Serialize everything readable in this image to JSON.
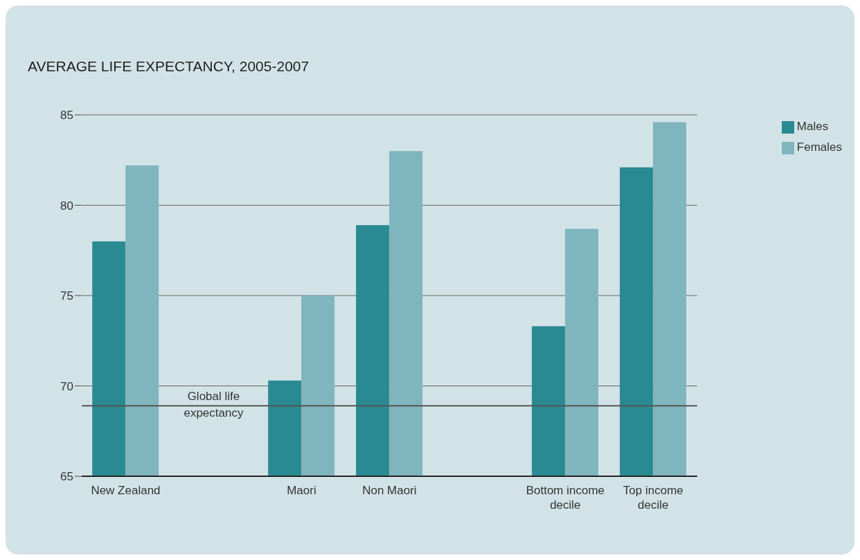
{
  "chart_data": {
    "type": "bar",
    "title": "AVERAGE LIFE EXPECTANCY, 2005-2007",
    "categories": [
      "New Zealand",
      null,
      "Maori",
      "Non Maori",
      null,
      "Bottom income decile",
      "Top income decile"
    ],
    "series": [
      {
        "name": "Males",
        "color": "#2a8a92",
        "values": [
          78.0,
          null,
          70.3,
          78.9,
          null,
          73.3,
          82.1
        ]
      },
      {
        "name": "Females",
        "color": "#7fb5bd",
        "values": [
          82.2,
          null,
          75.0,
          83.0,
          null,
          78.7,
          84.6
        ]
      }
    ],
    "ylim": [
      65,
      85
    ],
    "yticks": [
      65,
      70,
      75,
      80,
      85
    ],
    "grid": "y",
    "legend": "top right",
    "ref_lines": [
      {
        "axis": "y",
        "value": 68.9,
        "label": "Global life expectancy",
        "color": "#555555"
      }
    ]
  }
}
